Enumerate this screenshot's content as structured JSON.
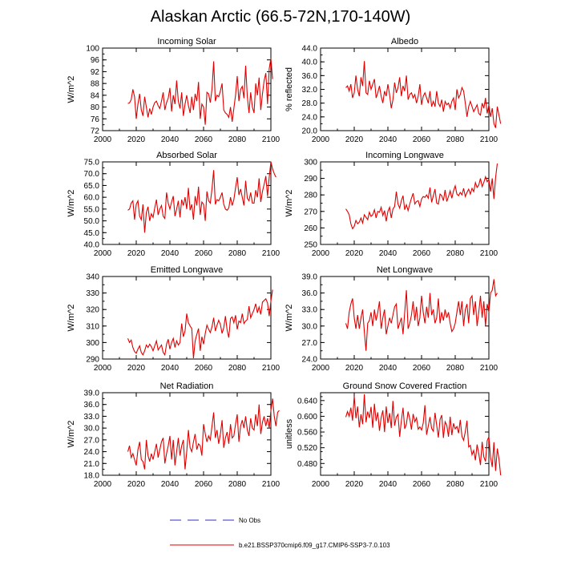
{
  "figure_title": "Alaskan Arctic (66.5-72N,170-140W)",
  "colors": {
    "model": "#e00000",
    "obs": "#3030c0"
  },
  "legend": [
    {
      "label": "No Obs",
      "style": "dashed",
      "color": "#3030c0"
    },
    {
      "label": "b.e21.BSSP370cmip6.f09_g17.CMIP6-SSP3-7.0.103",
      "style": "solid",
      "color": "#e00000"
    }
  ],
  "chart_data": [
    {
      "type": "line",
      "title": "Incoming Solar",
      "ylabel": "W/m^2",
      "xlim": [
        2000,
        2100
      ],
      "xticks": [
        "2000",
        "2020",
        "2040",
        "2060",
        "2080",
        "2100"
      ],
      "ylim": [
        72,
        100
      ],
      "yticks": [
        "72",
        "76",
        "80",
        "84",
        "88",
        "92",
        "96",
        "100"
      ],
      "x_start": 2015,
      "values": [
        81.2,
        81.4,
        82.5,
        86.0,
        83.5,
        76.0,
        81.0,
        84.5,
        79.0,
        77.0,
        83.5,
        80.0,
        76.5,
        79.5,
        77.5,
        80.0,
        81.5,
        82.0,
        80.5,
        79.5,
        82.0,
        85.0,
        79.0,
        81.5,
        83.0,
        86.5,
        78.5,
        84.0,
        81.0,
        89.0,
        82.0,
        79.5,
        85.0,
        77.0,
        81.0,
        84.0,
        80.5,
        78.0,
        83.5,
        79.0,
        84.5,
        82.0,
        88.5,
        76.0,
        81.0,
        80.0,
        74.0,
        85.0,
        84.5,
        81.5,
        86.0,
        95.5,
        82.0,
        84.0,
        83.5,
        85.5,
        88.0,
        79.0,
        78.0,
        77.5,
        76.5,
        80.0,
        75.0,
        79.5,
        84.0,
        90.5,
        82.0,
        86.0,
        87.0,
        83.0,
        94.0,
        83.5,
        78.0,
        85.0,
        80.0,
        78.0,
        88.0,
        84.0,
        90.0,
        79.0,
        84.5,
        89.0,
        91.5,
        81.0,
        93.0,
        96.5,
        89.5
      ]
    },
    {
      "type": "line",
      "title": "Albedo",
      "ylabel": "% reflected",
      "xlim": [
        2000,
        2100
      ],
      "xticks": [
        "2000",
        "2020",
        "2040",
        "2060",
        "2080",
        "2100"
      ],
      "ylim": [
        20,
        44
      ],
      "yticks": [
        "20.0",
        "24.0",
        "28.0",
        "32.0",
        "36.0",
        "40.0",
        "44.0"
      ],
      "x_start": 2015,
      "values": [
        32.5,
        33.0,
        31.5,
        33.5,
        29.5,
        31.0,
        36.0,
        32.0,
        30.0,
        35.5,
        33.0,
        40.2,
        31.0,
        30.5,
        34.5,
        32.0,
        33.5,
        35.0,
        29.5,
        31.0,
        33.0,
        30.0,
        28.0,
        31.5,
        30.0,
        33.5,
        30.5,
        26.5,
        29.0,
        34.0,
        31.0,
        32.5,
        35.5,
        30.0,
        33.0,
        31.5,
        36.0,
        29.0,
        30.5,
        31.0,
        29.5,
        30.5,
        28.0,
        30.0,
        33.5,
        27.5,
        30.0,
        31.0,
        29.5,
        28.0,
        31.5,
        27.0,
        28.5,
        27.0,
        31.5,
        28.0,
        27.0,
        29.0,
        25.5,
        28.5,
        27.5,
        28.0,
        26.5,
        28.5,
        29.5,
        26.0,
        32.0,
        29.5,
        30.5,
        32.5,
        31.5,
        28.0,
        24.0,
        27.0,
        28.5,
        27.0,
        25.5,
        26.5,
        27.5,
        25.0,
        24.5,
        28.0,
        26.5,
        29.5,
        25.0,
        27.5,
        24.0,
        26.5,
        22.0,
        20.8,
        27.0,
        24.5,
        22.0
      ]
    },
    {
      "type": "line",
      "title": "Absorbed Solar",
      "ylabel": "W/m^2",
      "xlim": [
        2000,
        2100
      ],
      "xticks": [
        "2000",
        "2020",
        "2040",
        "2060",
        "2080",
        "2100"
      ],
      "ylim": [
        40,
        75
      ],
      "yticks": [
        "40.0",
        "45.0",
        "50.0",
        "55.0",
        "60.0",
        "65.0",
        "70.0",
        "75.0"
      ],
      "x_start": 2015,
      "values": [
        54.5,
        55.0,
        57.5,
        58.5,
        50.5,
        57.0,
        58.5,
        52.0,
        50.5,
        57.0,
        45.0,
        53.5,
        56.0,
        50.0,
        53.0,
        51.5,
        55.5,
        59.0,
        52.5,
        55.0,
        56.5,
        52.0,
        51.0,
        62.0,
        57.5,
        55.0,
        58.0,
        60.5,
        52.0,
        55.0,
        58.5,
        51.5,
        59.0,
        56.5,
        60.0,
        55.0,
        64.0,
        54.5,
        57.0,
        50.5,
        60.5,
        56.5,
        64.5,
        52.5,
        58.0,
        57.0,
        50.0,
        62.5,
        58.5,
        57.5,
        63.5,
        71.5,
        57.0,
        59.0,
        58.5,
        60.0,
        62.0,
        57.0,
        55.0,
        54.5,
        55.5,
        60.0,
        56.5,
        59.0,
        64.0,
        68.5,
        61.0,
        63.5,
        60.0,
        56.5,
        67.0,
        59.5,
        58.5,
        62.0,
        57.5,
        57.5,
        63.0,
        60.0,
        68.0,
        58.0,
        62.5,
        65.5,
        69.0,
        60.5,
        68.5,
        75.0,
        72.0,
        70.0,
        68.5
      ]
    },
    {
      "type": "line",
      "title": "Incoming Longwave",
      "ylabel": "W/m^2",
      "xlim": [
        2000,
        2100
      ],
      "xticks": [
        "2000",
        "2020",
        "2040",
        "2060",
        "2080",
        "2100"
      ],
      "ylim": [
        250,
        300
      ],
      "yticks": [
        "250",
        "260",
        "270",
        "280",
        "290",
        "300"
      ],
      "x_start": 2015,
      "values": [
        271.5,
        270.0,
        268.0,
        262.5,
        259.5,
        261.0,
        264.5,
        262.5,
        263.5,
        266.0,
        263.0,
        268.0,
        266.5,
        265.0,
        269.5,
        267.0,
        268.0,
        271.0,
        266.0,
        270.0,
        269.5,
        272.5,
        267.5,
        270.5,
        264.0,
        270.0,
        272.5,
        266.0,
        271.5,
        273.0,
        282.0,
        274.5,
        272.0,
        276.5,
        279.5,
        271.0,
        274.0,
        270.5,
        274.5,
        278.0,
        281.0,
        274.5,
        276.0,
        276.5,
        273.0,
        277.5,
        279.0,
        278.5,
        280.0,
        278.0,
        284.5,
        275.5,
        279.5,
        283.5,
        275.0,
        274.5,
        280.5,
        279.5,
        276.5,
        283.0,
        276.0,
        279.0,
        282.5,
        278.0,
        282.5,
        285.5,
        280.5,
        279.5,
        281.5,
        280.0,
        284.0,
        279.0,
        281.5,
        283.5,
        280.5,
        284.0,
        282.0,
        287.5,
        284.5,
        286.0,
        290.0,
        285.0,
        287.5,
        291.0,
        288.0,
        289.5,
        282.0,
        290.0,
        277.5,
        290.5,
        299.0
      ]
    },
    {
      "type": "line",
      "title": "Emitted Longwave",
      "ylabel": "W/m^2",
      "xlim": [
        2000,
        2100
      ],
      "xticks": [
        "2000",
        "2020",
        "2040",
        "2060",
        "2080",
        "2100"
      ],
      "ylim": [
        290,
        340
      ],
      "yticks": [
        "290",
        "300",
        "310",
        "320",
        "330",
        "340"
      ],
      "x_start": 2015,
      "values": [
        302.5,
        300.0,
        301.5,
        297.0,
        294.5,
        293.5,
        296.0,
        298.0,
        294.0,
        292.5,
        295.0,
        298.5,
        297.0,
        299.0,
        297.5,
        295.0,
        298.0,
        301.0,
        295.5,
        297.0,
        298.5,
        294.0,
        292.5,
        299.0,
        302.0,
        296.0,
        300.0,
        302.5,
        297.0,
        301.0,
        298.5,
        300.0,
        311.5,
        303.5,
        307.0,
        317.5,
        312.0,
        310.0,
        308.5,
        290.5,
        301.0,
        305.0,
        308.5,
        295.0,
        303.5,
        299.0,
        305.5,
        310.5,
        308.0,
        306.0,
        309.5,
        315.0,
        307.0,
        310.5,
        313.5,
        311.0,
        305.5,
        309.0,
        316.0,
        307.5,
        303.0,
        314.5,
        315.5,
        312.0,
        316.5,
        308.0,
        313.0,
        312.0,
        317.5,
        311.5,
        313.0,
        314.0,
        322.0,
        315.0,
        317.5,
        320.0,
        323.5,
        318.0,
        321.5,
        317.0,
        324.5,
        325.5,
        326.5,
        324.0,
        316.0,
        325.0,
        332.0
      ]
    },
    {
      "type": "line",
      "title": "Net Longwave",
      "ylabel": "W/m^2",
      "xlim": [
        2000,
        2100
      ],
      "xticks": [
        "2000",
        "2020",
        "2040",
        "2060",
        "2080",
        "2100"
      ],
      "ylim": [
        24,
        39
      ],
      "yticks": [
        "24.0",
        "27.0",
        "30.0",
        "33.0",
        "36.0",
        "39.0"
      ],
      "x_start": 2015,
      "values": [
        30.5,
        29.5,
        32.5,
        34.0,
        35.0,
        31.5,
        29.5,
        32.0,
        29.5,
        31.5,
        33.0,
        29.0,
        25.5,
        30.5,
        31.0,
        32.5,
        30.0,
        33.0,
        31.0,
        32.5,
        34.5,
        29.5,
        31.5,
        33.0,
        28.5,
        30.0,
        31.5,
        30.5,
        32.0,
        33.5,
        34.0,
        29.5,
        30.5,
        31.5,
        28.5,
        32.5,
        36.5,
        29.5,
        30.5,
        32.0,
        34.5,
        31.0,
        33.5,
        30.0,
        31.5,
        35.5,
        32.5,
        30.5,
        33.5,
        31.5,
        36.0,
        32.0,
        33.0,
        30.5,
        31.5,
        35.0,
        30.5,
        32.5,
        31.0,
        33.0,
        31.5,
        32.5,
        30.5,
        29.0,
        29.5,
        30.5,
        32.5,
        34.5,
        32.0,
        34.5,
        30.0,
        33.0,
        34.0,
        30.5,
        35.0,
        35.5,
        32.0,
        34.5,
        30.0,
        32.5,
        35.5,
        31.5,
        34.5,
        30.0,
        34.0,
        32.5,
        36.0,
        36.5,
        38.5,
        35.5,
        36.0
      ]
    },
    {
      "type": "line",
      "title": "Net Radiation",
      "ylabel": "W/m^2",
      "xlim": [
        2000,
        2100
      ],
      "xticks": [
        "2000",
        "2020",
        "2040",
        "2060",
        "2080",
        "2100"
      ],
      "ylim": [
        18,
        39
      ],
      "yticks": [
        "18.0",
        "21.0",
        "24.0",
        "27.0",
        "30.0",
        "33.0",
        "36.0",
        "39.0"
      ],
      "x_start": 2015,
      "values": [
        24.0,
        25.5,
        22.5,
        23.5,
        22.0,
        20.5,
        24.5,
        26.5,
        22.0,
        21.5,
        19.5,
        27.0,
        23.0,
        21.5,
        23.5,
        22.0,
        24.0,
        26.0,
        22.5,
        24.5,
        26.5,
        27.5,
        21.0,
        23.5,
        25.5,
        28.0,
        22.0,
        27.0,
        20.5,
        24.0,
        27.5,
        23.0,
        25.5,
        27.0,
        19.5,
        24.0,
        29.5,
        25.0,
        24.0,
        26.5,
        28.5,
        24.5,
        26.0,
        25.5,
        23.0,
        31.0,
        28.5,
        26.5,
        28.0,
        27.0,
        30.5,
        34.0,
        27.5,
        29.5,
        26.0,
        28.5,
        32.0,
        25.0,
        27.5,
        29.0,
        26.0,
        31.0,
        27.5,
        28.0,
        31.0,
        33.5,
        26.5,
        30.5,
        32.0,
        30.0,
        33.0,
        29.5,
        28.0,
        32.5,
        30.0,
        29.5,
        33.5,
        30.5,
        36.0,
        28.5,
        31.5,
        33.0,
        30.5,
        32.5,
        30.0,
        34.5,
        37.5,
        33.0,
        30.5,
        34.0,
        34.5
      ]
    },
    {
      "type": "line",
      "title": "Ground Snow Covered Fraction",
      "ylabel": "unitless",
      "xlim": [
        2000,
        2100
      ],
      "xticks": [
        "2000",
        "2020",
        "2040",
        "2060",
        "2080",
        "2100"
      ],
      "ylim": [
        0.45,
        0.66
      ],
      "yticks": [
        "0.480",
        "0.520",
        "0.560",
        "0.600",
        "0.640"
      ],
      "x_start": 2015,
      "values": [
        0.598,
        0.612,
        0.6,
        0.622,
        0.589,
        0.651,
        0.595,
        0.625,
        0.572,
        0.605,
        0.58,
        0.656,
        0.585,
        0.612,
        0.596,
        0.624,
        0.571,
        0.632,
        0.588,
        0.61,
        0.563,
        0.597,
        0.615,
        0.56,
        0.625,
        0.583,
        0.608,
        0.57,
        0.639,
        0.576,
        0.598,
        0.605,
        0.548,
        0.589,
        0.622,
        0.568,
        0.58,
        0.612,
        0.594,
        0.566,
        0.606,
        0.586,
        0.596,
        0.567,
        0.573,
        0.565,
        0.583,
        0.628,
        0.553,
        0.575,
        0.598,
        0.569,
        0.562,
        0.609,
        0.577,
        0.546,
        0.592,
        0.603,
        0.545,
        0.586,
        0.577,
        0.548,
        0.599,
        0.552,
        0.582,
        0.568,
        0.574,
        0.557,
        0.591,
        0.549,
        0.539,
        0.561,
        0.589,
        0.522,
        0.526,
        0.502,
        0.513,
        0.488,
        0.528,
        0.505,
        0.476,
        0.535,
        0.497,
        0.485,
        0.538,
        0.548,
        0.496,
        0.471,
        0.534,
        0.461,
        0.518,
        0.492,
        0.45
      ]
    }
  ]
}
